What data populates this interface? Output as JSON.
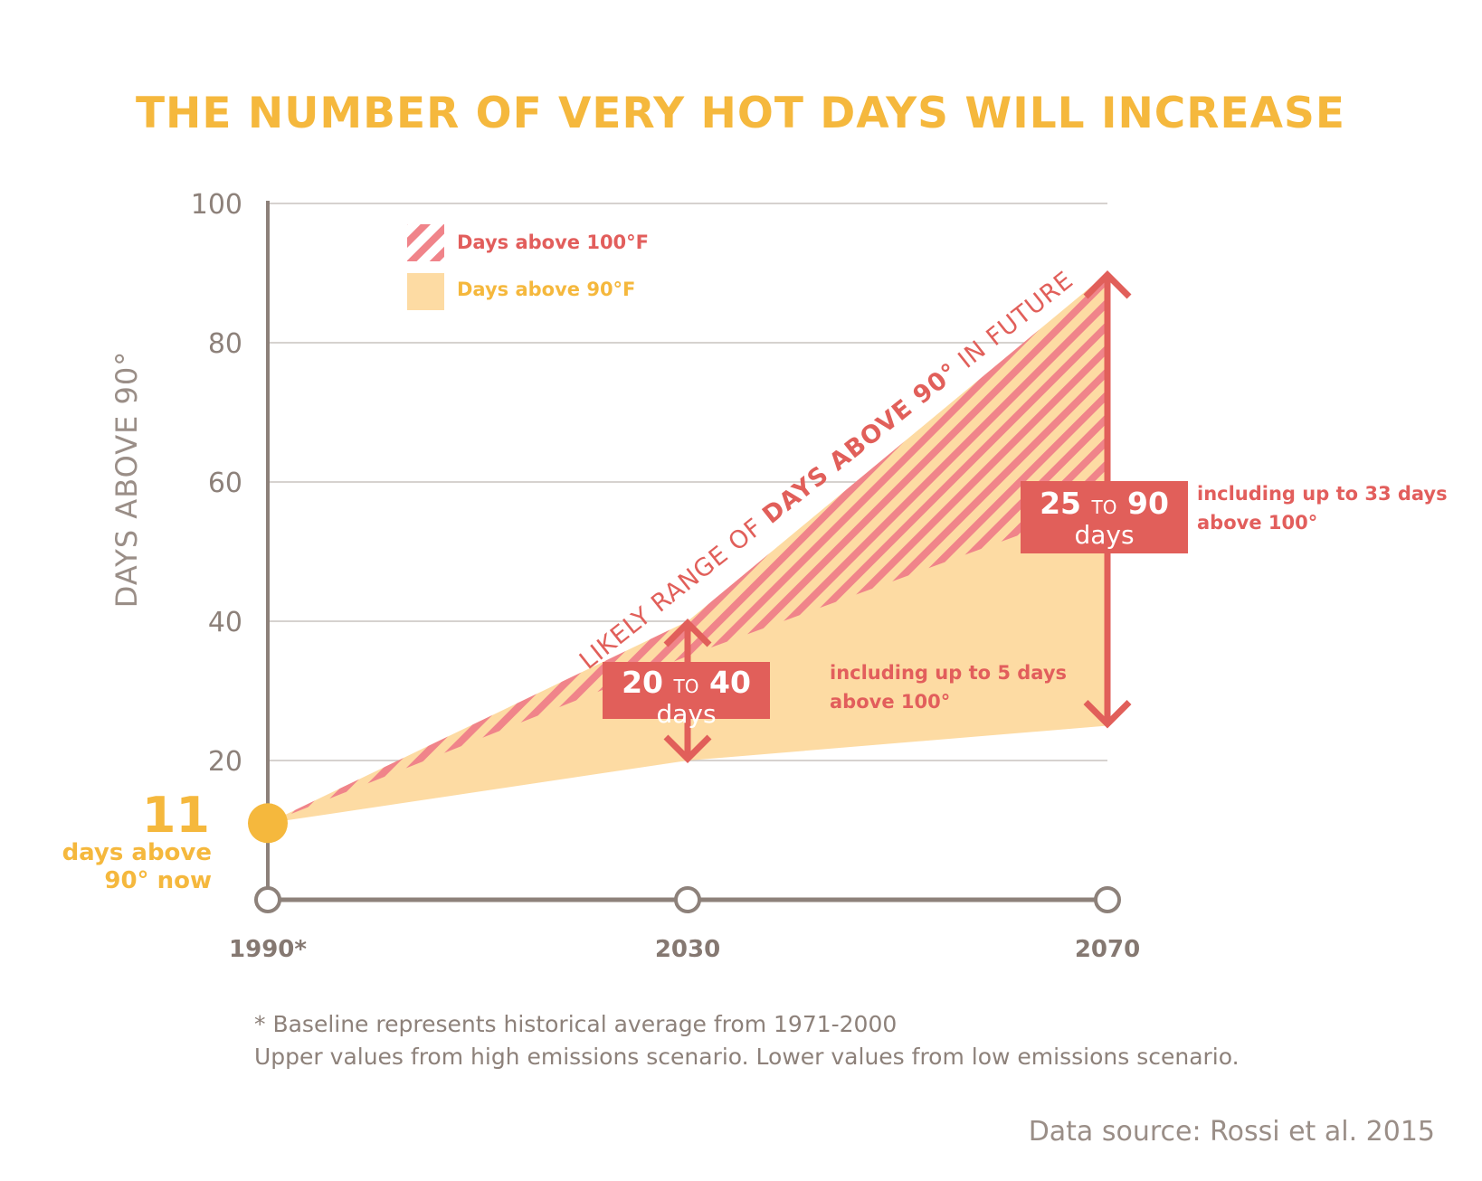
{
  "title": "THE NUMBER OF VERY HOT DAYS WILL INCREASE",
  "colors": {
    "title": "#f5b83d",
    "days_above_90": "#fddba3",
    "days_above_100": "#f0848a",
    "emphasis": "#e15f5a",
    "axis": "#8d817a",
    "grid": "#c9c3bf",
    "baseline_dot": "#f5b83d"
  },
  "legend": {
    "days_above_100": "Days above 100°F",
    "days_above_90": "Days above 90°F"
  },
  "band_label": {
    "prefix": "LIKELY RANGE OF ",
    "bold": "DAYS ABOVE 90°",
    "suffix": " IN FUTURE"
  },
  "baseline_callout": {
    "value": "11",
    "text_line1": "days above",
    "text_line2": "90° now"
  },
  "range_boxes": [
    {
      "year": "2030",
      "low": "20",
      "to": "TO",
      "high": "40",
      "unit": "days"
    },
    {
      "year": "2070",
      "low": "25",
      "to": "TO",
      "high": "90",
      "unit": "days"
    }
  ],
  "notes": [
    {
      "year": "2030",
      "line1": "including up to 5 days",
      "line2": "above 100°"
    },
    {
      "year": "2070",
      "line1": "including up to 33 days",
      "line2": "above 100°"
    }
  ],
  "footnotes": {
    "line1": "* Baseline represents historical average from 1971-2000",
    "line2": "Upper values from high emissions scenario. Lower values from low emissions scenario."
  },
  "source": "Data source: Rossi et al. 2015",
  "chart_data": {
    "type": "area",
    "x": [
      "1990*",
      "2030",
      "2070"
    ],
    "ylabel": "DAYS ABOVE 90°",
    "ylim": [
      0,
      100
    ],
    "yticks": [
      "20",
      "40",
      "60",
      "80",
      "100"
    ],
    "grid": true,
    "legend_position": "top-left",
    "series": [
      {
        "name": "Days above 90°F",
        "upper": [
          11,
          40,
          90
        ],
        "lower": [
          11,
          20,
          25
        ]
      },
      {
        "name": "Days above 100°F",
        "upper": [
          11,
          40,
          90
        ],
        "lower": [
          11,
          35,
          57
        ]
      }
    ]
  }
}
